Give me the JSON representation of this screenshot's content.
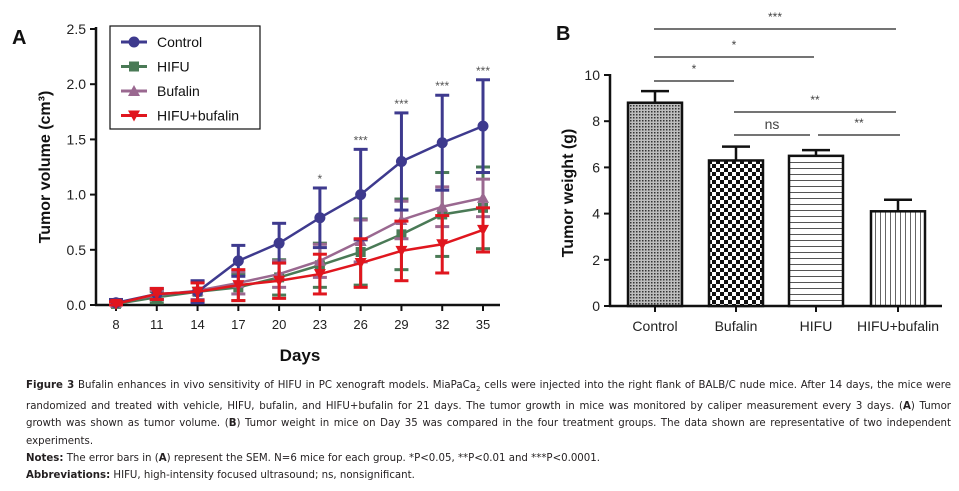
{
  "chart_data": [
    {
      "type": "line",
      "panel_label": "A",
      "title": "",
      "xlabel": "Days",
      "ylabel": "Tumor volume (cm³)",
      "x": [
        8,
        11,
        14,
        17,
        20,
        23,
        26,
        29,
        32,
        35
      ],
      "x_ticks": [
        "8",
        "11",
        "14",
        "17",
        "20",
        "23",
        "26",
        "29",
        "32",
        "35"
      ],
      "y_ticks": [
        "0.0",
        "0.5",
        "1.0",
        "1.5",
        "2.0",
        "2.5"
      ],
      "ylim": [
        0,
        2.5
      ],
      "grid": false,
      "legend_position": "top-left",
      "series": [
        {
          "name": "Control",
          "marker": "circle",
          "color": "#3e3a8e",
          "values": [
            0.02,
            0.1,
            0.12,
            0.4,
            0.56,
            0.79,
            1.0,
            1.3,
            1.47,
            1.62
          ],
          "sem": [
            0.03,
            0.05,
            0.1,
            0.14,
            0.18,
            0.27,
            0.41,
            0.44,
            0.43,
            0.42
          ]
        },
        {
          "name": "HIFU",
          "marker": "square",
          "color": "#4a7a56",
          "values": [
            0.01,
            0.07,
            0.12,
            0.16,
            0.25,
            0.36,
            0.48,
            0.64,
            0.82,
            0.88
          ],
          "sem": [
            0.02,
            0.05,
            0.09,
            0.12,
            0.16,
            0.2,
            0.3,
            0.32,
            0.38,
            0.37
          ]
        },
        {
          "name": "Bufalin",
          "marker": "triangle-up",
          "color": "#9a6890",
          "values": [
            0.02,
            0.09,
            0.13,
            0.2,
            0.28,
            0.4,
            0.58,
            0.77,
            0.89,
            0.97
          ],
          "sem": [
            0.02,
            0.04,
            0.08,
            0.1,
            0.12,
            0.15,
            0.19,
            0.17,
            0.18,
            0.17
          ]
        },
        {
          "name": "HIFU+bufalin",
          "marker": "triangle-down",
          "color": "#e0161e",
          "values": [
            0.01,
            0.1,
            0.12,
            0.18,
            0.22,
            0.28,
            0.38,
            0.49,
            0.55,
            0.68
          ],
          "sem": [
            0.02,
            0.05,
            0.08,
            0.14,
            0.16,
            0.18,
            0.22,
            0.27,
            0.26,
            0.2
          ]
        }
      ],
      "annotations": [
        {
          "x": 23,
          "text": "*"
        },
        {
          "x": 26,
          "text": "***"
        },
        {
          "x": 29,
          "text": "***"
        },
        {
          "x": 32,
          "text": "***"
        },
        {
          "x": 35,
          "text": "***"
        }
      ]
    },
    {
      "type": "bar",
      "panel_label": "B",
      "title": "",
      "xlabel": "",
      "ylabel": "Tumor weight (g)",
      "categories": [
        "Control",
        "Bufalin",
        "HIFU",
        "HIFU+bufalin"
      ],
      "values": [
        8.8,
        6.3,
        6.5,
        4.1
      ],
      "errors": [
        0.5,
        0.6,
        0.25,
        0.5
      ],
      "patterns": [
        "fine-dots",
        "checker",
        "horizontal-lines",
        "vertical-lines"
      ],
      "y_ticks": [
        "0",
        "2",
        "4",
        "6",
        "8",
        "10"
      ],
      "ylim": [
        0,
        10
      ],
      "grid": false,
      "significance": [
        {
          "from": 0,
          "to": 3,
          "text": "***",
          "level": 1
        },
        {
          "from": 0,
          "to": 2,
          "text": "*",
          "level": 2
        },
        {
          "from": 0,
          "to": 1,
          "text": "*",
          "level": 3
        },
        {
          "from": 1,
          "to": 3,
          "text": "**",
          "level": 4
        },
        {
          "from": 1,
          "to": 2,
          "text": "ns",
          "level": 5
        },
        {
          "from": 2,
          "to": 3,
          "text": "**",
          "level": 5
        }
      ]
    }
  ],
  "caption": {
    "figure_label": "Figure 3",
    "text_1": " Bufalin enhances in vivo sensitivity of HIFU in PC xenograft models. MiaPaCa",
    "subscript": "2",
    "text_2": " cells were injected into the right flank of BALB/C nude mice. After 14 days, the mice were randomized and treated with vehicle, HIFU, bufalin, and HIFU+bufalin for 21 days. The tumor growth in mice was monitored by caliper measurement every 3 days. (",
    "a": "A",
    "text_3": ") Tumor growth was shown as tumor volume. (",
    "b": "B",
    "text_4": ") Tumor weight in mice on Day 35 was compared in the four treatment groups. The data shown are representative of two independent experiments.",
    "notes_label": "Notes:",
    "notes_1": " The error bars in (",
    "notes_a": "A",
    "notes_2": ") represent the SEM. N=6 mice for each group. *P<0.05, **P<0.01 and ***P<0.0001.",
    "abbr_label": "Abbreviations:",
    "abbr_text": " HIFU, high-intensity focused ultrasound; ns, nonsignificant."
  }
}
